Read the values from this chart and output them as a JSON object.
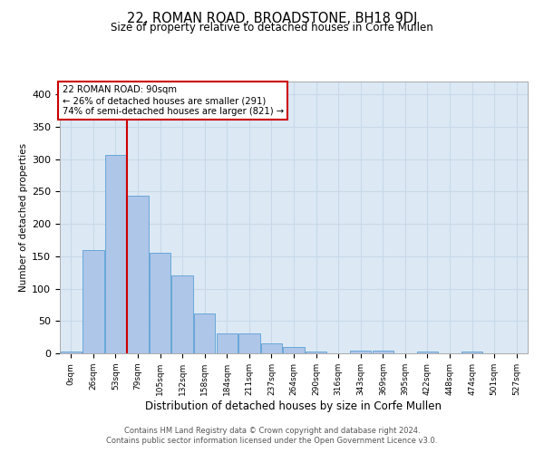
{
  "title": "22, ROMAN ROAD, BROADSTONE, BH18 9DJ",
  "subtitle": "Size of property relative to detached houses in Corfe Mullen",
  "xlabel": "Distribution of detached houses by size in Corfe Mullen",
  "ylabel": "Number of detached properties",
  "footer_line1": "Contains HM Land Registry data © Crown copyright and database right 2024.",
  "footer_line2": "Contains public sector information licensed under the Open Government Licence v3.0.",
  "annotation_title": "22 ROMAN ROAD: 90sqm",
  "annotation_line1": "← 26% of detached houses are smaller (291)",
  "annotation_line2": "74% of semi-detached houses are larger (821) →",
  "bar_labels": [
    "0sqm",
    "26sqm",
    "53sqm",
    "79sqm",
    "105sqm",
    "132sqm",
    "158sqm",
    "184sqm",
    "211sqm",
    "237sqm",
    "264sqm",
    "290sqm",
    "316sqm",
    "343sqm",
    "369sqm",
    "395sqm",
    "422sqm",
    "448sqm",
    "474sqm",
    "501sqm",
    "527sqm"
  ],
  "bar_values": [
    3,
    160,
    307,
    243,
    155,
    120,
    62,
    31,
    31,
    16,
    10,
    3,
    0,
    4,
    4,
    0,
    3,
    0,
    3,
    0,
    0
  ],
  "bar_color": "#aec6e8",
  "bar_edge_color": "#5a9fd4",
  "grid_color": "#c8d8e8",
  "background_color": "#dce9f5",
  "vline_color": "#cc0000",
  "vline_bin_index": 3,
  "annotation_box_color": "#cc0000",
  "ylim": [
    0,
    420
  ],
  "yticks": [
    0,
    50,
    100,
    150,
    200,
    250,
    300,
    350,
    400
  ]
}
